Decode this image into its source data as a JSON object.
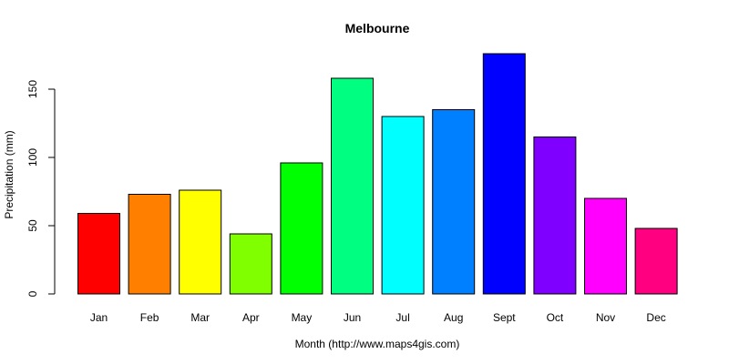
{
  "chart_data": {
    "type": "bar",
    "title": "Melbourne",
    "xlabel": "Month (http://www.maps4gis.com)",
    "ylabel": "Precipitation (mm)",
    "ylim": [
      0,
      180
    ],
    "yticks": [
      0,
      50,
      100,
      150
    ],
    "categories": [
      "Jan",
      "Feb",
      "Mar",
      "Apr",
      "May",
      "Jun",
      "Jul",
      "Aug",
      "Sept",
      "Oct",
      "Nov",
      "Dec"
    ],
    "values": [
      59,
      73,
      76,
      44,
      96,
      158,
      130,
      135,
      176,
      115,
      70,
      48
    ],
    "colors": [
      "#FF0000",
      "#FF8000",
      "#FFFF00",
      "#80FF00",
      "#00FF00",
      "#00FF80",
      "#00FFFF",
      "#0080FF",
      "#0000FF",
      "#8000FF",
      "#FF00FF",
      "#FF0080"
    ],
    "grid": false,
    "legend": "none"
  }
}
